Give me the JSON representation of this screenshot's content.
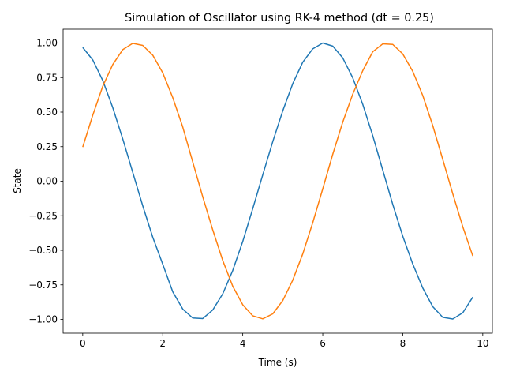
{
  "chart_data": {
    "type": "line",
    "title": "Simulation of Oscillator using RK-4 method (dt = 0.25)",
    "xlabel": "Time (s)",
    "ylabel": "State",
    "xlim": [
      -0.49,
      10.24
    ],
    "ylim": [
      -1.1,
      1.1
    ],
    "grid": false,
    "xticks": [
      {
        "value": 0,
        "label": "0"
      },
      {
        "value": 2,
        "label": "2"
      },
      {
        "value": 4,
        "label": "4"
      },
      {
        "value": 6,
        "label": "6"
      },
      {
        "value": 8,
        "label": "8"
      },
      {
        "value": 10,
        "label": "10"
      }
    ],
    "yticks": [
      {
        "value": -1.0,
        "label": "−1.00"
      },
      {
        "value": -0.75,
        "label": "−0.75"
      },
      {
        "value": -0.5,
        "label": "−0.50"
      },
      {
        "value": -0.25,
        "label": "−0.25"
      },
      {
        "value": 0.0,
        "label": "0.00"
      },
      {
        "value": 0.25,
        "label": "0.25"
      },
      {
        "value": 0.5,
        "label": "0.50"
      },
      {
        "value": 0.75,
        "label": "0.75"
      },
      {
        "value": 1.0,
        "label": "1.00"
      }
    ],
    "x": [
      0,
      0.25,
      0.5,
      0.75,
      1.0,
      1.25,
      1.5,
      1.75,
      2.0,
      2.25,
      2.5,
      2.75,
      3.0,
      3.25,
      3.5,
      3.75,
      4.0,
      4.25,
      4.5,
      4.75,
      5.0,
      5.25,
      5.5,
      5.75,
      6.0,
      6.25,
      6.5,
      6.75,
      7.0,
      7.25,
      7.5,
      7.75,
      8.0,
      8.25,
      8.5,
      8.75,
      9.0,
      9.25,
      9.5,
      9.75
    ],
    "series": [
      {
        "color": "#1f77b4",
        "values": [
          0.968,
          0.878,
          0.729,
          0.533,
          0.306,
          0.064,
          -0.178,
          -0.405,
          -0.601,
          -0.8,
          -0.925,
          -0.99,
          -0.994,
          -0.932,
          -0.815,
          -0.646,
          -0.436,
          -0.199,
          0.046,
          0.286,
          0.509,
          0.706,
          0.861,
          0.958,
          1.0,
          0.978,
          0.892,
          0.748,
          0.556,
          0.329,
          0.08,
          -0.168,
          -0.398,
          -0.599,
          -0.773,
          -0.908,
          -0.985,
          -0.997,
          -0.952,
          -0.839
        ]
      },
      {
        "color": "#ff7f0e",
        "values": [
          0.247,
          0.477,
          0.687,
          0.844,
          0.952,
          0.998,
          0.983,
          0.912,
          0.784,
          0.605,
          0.392,
          0.139,
          -0.113,
          -0.352,
          -0.574,
          -0.76,
          -0.894,
          -0.974,
          -0.996,
          -0.96,
          -0.864,
          -0.716,
          -0.526,
          -0.3,
          -0.055,
          0.195,
          0.428,
          0.63,
          0.8,
          0.937,
          0.994,
          0.99,
          0.921,
          0.795,
          0.62,
          0.402,
          0.157,
          -0.091,
          -0.329,
          -0.541
        ]
      }
    ]
  }
}
